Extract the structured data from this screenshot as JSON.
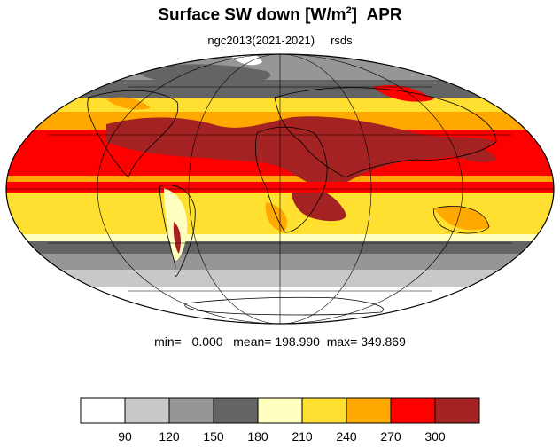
{
  "title": {
    "main": "Surface SW down [W/m",
    "sup": "2",
    "close": "]",
    "month": "APR"
  },
  "subtitle": {
    "experiment": "ngc2013(2021-2021)",
    "variable": "rsds"
  },
  "stats": {
    "min_label": "min=",
    "min_value": "0.000",
    "mean_label": "mean=",
    "mean_value": "198.990",
    "max_label": "max=",
    "max_value": "349.869"
  },
  "colorbar": {
    "colors": [
      "#ffffff",
      "#c8c8c8",
      "#969696",
      "#646464",
      "#ffffc0",
      "#ffe030",
      "#ffa800",
      "#ff0000",
      "#a52222"
    ],
    "labels": [
      "90",
      "120",
      "150",
      "180",
      "210",
      "240",
      "270",
      "300"
    ]
  },
  "map": {
    "projection": "Mollweide",
    "ocean_color": "#ffffff"
  }
}
